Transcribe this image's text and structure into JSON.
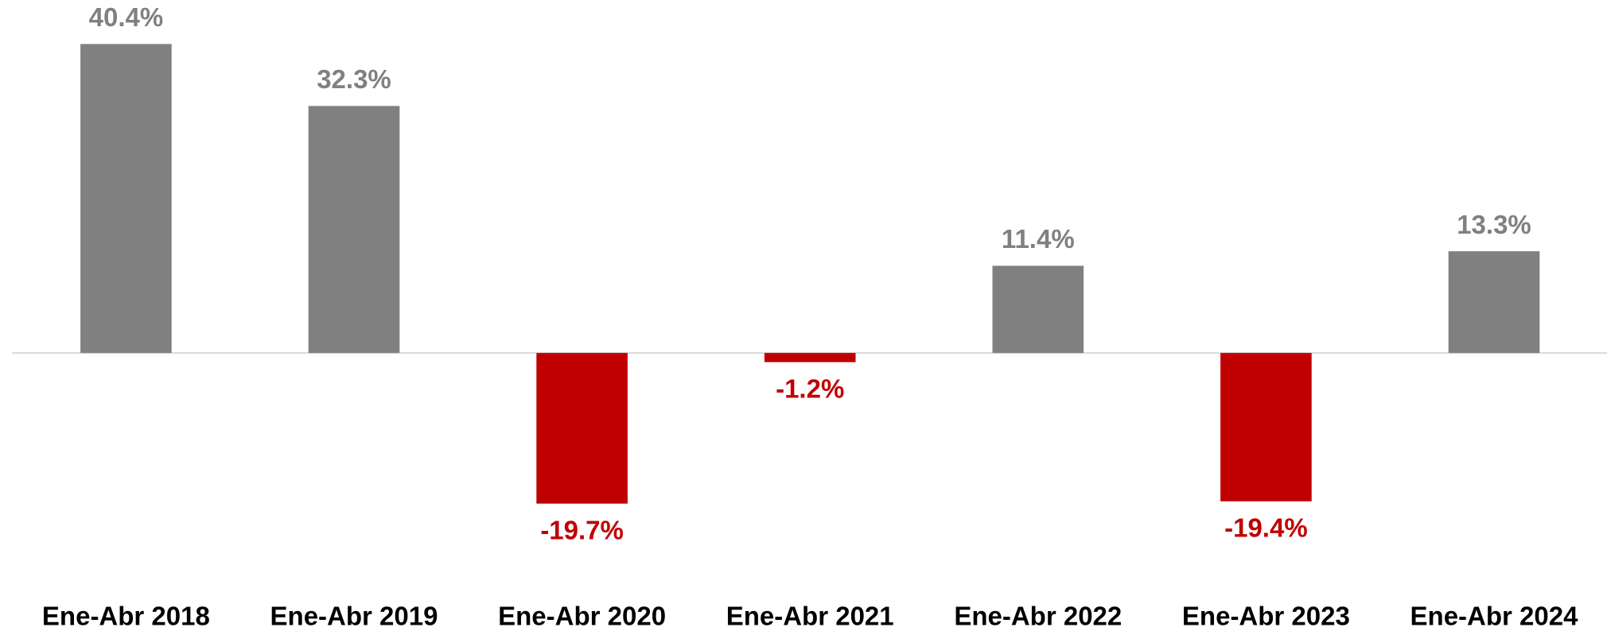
{
  "chart_data": {
    "type": "bar",
    "categories": [
      "Ene-Abr 2018",
      "Ene-Abr 2019",
      "Ene-Abr 2020",
      "Ene-Abr 2021",
      "Ene-Abr 2022",
      "Ene-Abr 2023",
      "Ene-Abr 2024"
    ],
    "values": [
      40.4,
      32.3,
      -19.7,
      -1.2,
      11.4,
      -19.4,
      13.3
    ],
    "value_labels": [
      "40.4%",
      "32.3%",
      "-19.7%",
      "-1.2%",
      "11.4%",
      "-19.4%",
      "13.3%"
    ],
    "color": "#808080",
    "negative_color": "#c00000"
  }
}
